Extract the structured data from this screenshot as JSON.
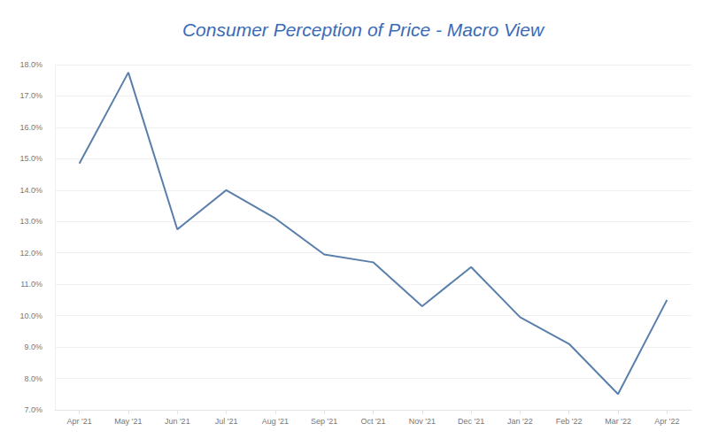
{
  "chart_data": {
    "type": "line",
    "title": "Consumer Perception of Price - Macro View",
    "categories": [
      "Apr '21",
      "May '21",
      "Jun '21",
      "Jul '21",
      "Aug '21",
      "Sep '21",
      "Oct '21",
      "Nov '21",
      "Dec '21",
      "Jan '22",
      "Feb '22",
      "Mar '22",
      "Apr '22"
    ],
    "values": [
      14.85,
      17.75,
      12.75,
      14.0,
      13.1,
      11.95,
      11.7,
      10.3,
      11.55,
      9.95,
      9.1,
      7.5,
      10.5
    ],
    "color": "#5a7fab",
    "ylim": [
      7,
      18
    ],
    "yticks": [
      {
        "value": 7,
        "label": "7.0%"
      },
      {
        "value": 8,
        "label": "8.0%"
      },
      {
        "value": 9,
        "label": "9.0%"
      },
      {
        "value": 10,
        "label": "10.0%"
      },
      {
        "value": 11,
        "label": "11.0%"
      },
      {
        "value": 12,
        "label": "12.0%"
      },
      {
        "value": 13,
        "label": "13.0%"
      },
      {
        "value": 14,
        "label": "14.0%"
      },
      {
        "value": 15,
        "label": "15.0%"
      },
      {
        "value": 16,
        "label": "16.0%"
      },
      {
        "value": 17,
        "label": "17.0%"
      },
      {
        "value": 18,
        "label": "18.0%"
      }
    ],
    "grid": true
  }
}
